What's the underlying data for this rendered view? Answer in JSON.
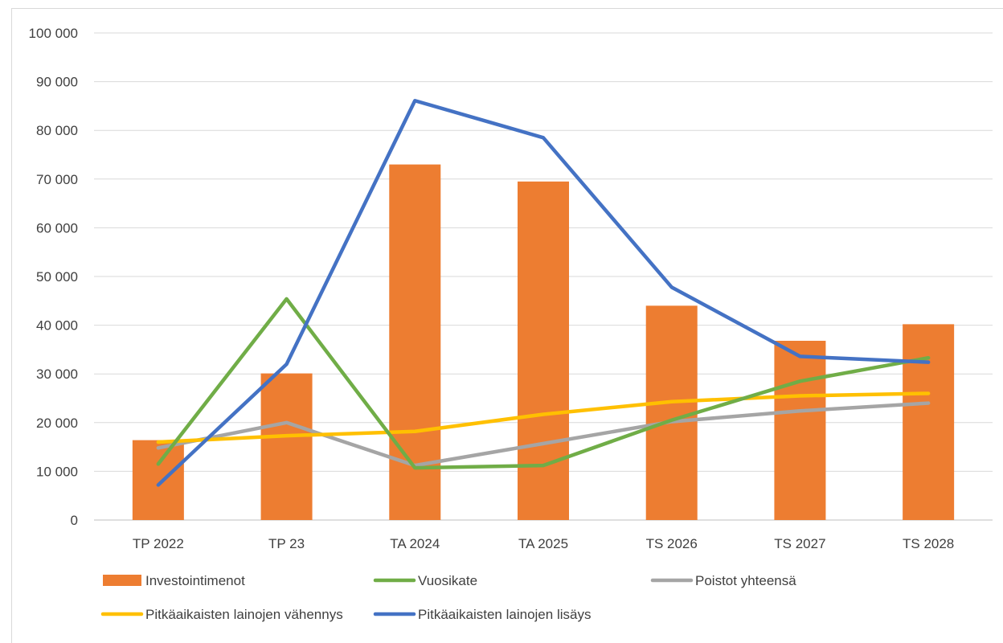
{
  "chart_data": {
    "type": "bar",
    "categories": [
      "TP 2022",
      "TP 23",
      "TA 2024",
      "TA 2025",
      "TS 2026",
      "TS 2027",
      "TS 2028"
    ],
    "ylim": [
      0,
      100000
    ],
    "yticks": [
      0,
      10000,
      20000,
      30000,
      40000,
      50000,
      60000,
      70000,
      80000,
      90000,
      100000
    ],
    "ytick_labels": [
      "0",
      "10 000",
      "20 000",
      "30 000",
      "40 000",
      "50 000",
      "60 000",
      "70 000",
      "80 000",
      "90 000",
      "100 000"
    ],
    "grid": true,
    "legend_position": "bottom",
    "series": [
      {
        "name": "Investointimenot",
        "kind": "bar",
        "color": "#ed7d31",
        "values": [
          16400,
          30100,
          73000,
          69500,
          44000,
          36800,
          40200
        ]
      },
      {
        "name": "Vuosikate",
        "kind": "line",
        "color": "#70ad47",
        "values": [
          11500,
          45400,
          10700,
          11200,
          20500,
          28500,
          33300
        ]
      },
      {
        "name": "Poistot yhteensä",
        "kind": "line",
        "color": "#a5a5a5",
        "values": [
          14800,
          20000,
          11200,
          15700,
          20200,
          22400,
          24000
        ]
      },
      {
        "name": "Pitkäaikaisten lainojen vähennys",
        "kind": "line",
        "color": "#ffc000",
        "values": [
          16000,
          17300,
          18200,
          21700,
          24300,
          25500,
          26000
        ]
      },
      {
        "name": "Pitkäaikaisten lainojen lisäys",
        "kind": "line",
        "color": "#4472c4",
        "values": [
          7200,
          32000,
          86100,
          78500,
          47800,
          33600,
          32400
        ]
      }
    ]
  }
}
